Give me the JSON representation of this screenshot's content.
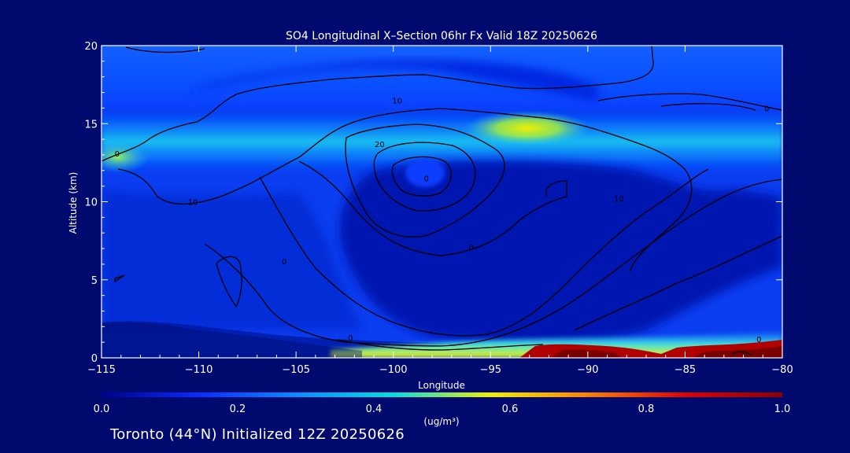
{
  "chart_data": {
    "type": "heatmap",
    "title": "SO4 Longitudinal X–Section 06hr  Fx Valid 18Z 20250626",
    "xlabel": "Longitude",
    "ylabel": "Altitude (km)",
    "xlim": [
      -115,
      -80
    ],
    "ylim": [
      0,
      20
    ],
    "x_ticks": [
      {
        "value": -115,
        "label": "−115"
      },
      {
        "value": -110,
        "label": "−110"
      },
      {
        "value": -105,
        "label": "−105"
      },
      {
        "value": -100,
        "label": "−100"
      },
      {
        "value": -95,
        "label": "−95"
      },
      {
        "value": -90,
        "label": "−90"
      },
      {
        "value": -85,
        "label": "−85"
      },
      {
        "value": -80,
        "label": "−80"
      }
    ],
    "y_ticks": [
      {
        "value": 0,
        "label": "0"
      },
      {
        "value": 5,
        "label": "5"
      },
      {
        "value": 10,
        "label": "10"
      },
      {
        "value": 15,
        "label": "15"
      },
      {
        "value": 20,
        "label": "20"
      }
    ],
    "colorbar": {
      "min": 0.0,
      "max": 1.0,
      "unit": "(ug/m³)",
      "tick_labels": [
        "0.0",
        "0.2",
        "0.4",
        "0.6",
        "0.8",
        "1.0"
      ],
      "colors": [
        "#00008c",
        "#0a2cff",
        "#0a8cff",
        "#00e0e0",
        "#f0f000",
        "#ff8000",
        "#e00000",
        "#8c0000"
      ]
    },
    "contour_labels": [
      {
        "lon": -114.2,
        "alt": 12.9,
        "text": "0"
      },
      {
        "lon": -110.3,
        "alt": 9.8,
        "text": "10"
      },
      {
        "lon": -105.6,
        "alt": 6.0,
        "text": "0"
      },
      {
        "lon": -99.8,
        "alt": 16.3,
        "text": "10"
      },
      {
        "lon": -100.7,
        "alt": 13.5,
        "text": "20"
      },
      {
        "lon": -98.3,
        "alt": 11.3,
        "text": "0"
      },
      {
        "lon": -96.0,
        "alt": 6.9,
        "text": "0"
      },
      {
        "lon": -88.4,
        "alt": 10.0,
        "text": "10"
      },
      {
        "lon": -80.8,
        "alt": 15.8,
        "text": "0"
      },
      {
        "lon": -102.2,
        "alt": 1.1,
        "text": "0"
      },
      {
        "lon": -81.2,
        "alt": 1.0,
        "text": "0"
      }
    ],
    "grid": false
  },
  "footer": "Toronto (44°N) Initialized 12Z 20250626"
}
